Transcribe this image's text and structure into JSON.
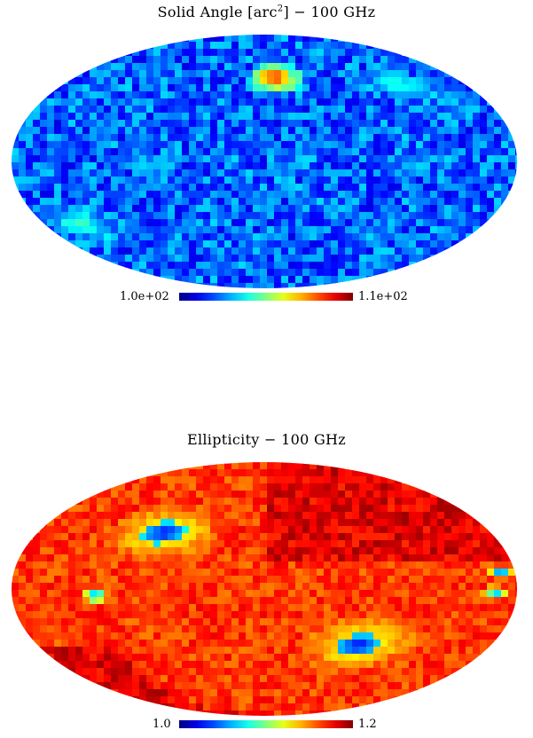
{
  "chart_data": [
    {
      "type": "heatmap",
      "projection": "mollweide",
      "title": "Solid Angle [arc²] − 100 GHz",
      "title_parts": {
        "pre": "Solid Angle [arc",
        "sup": "2",
        "post": "] − 100 GHz"
      },
      "colorbar": {
        "min": 100,
        "max": 110,
        "min_label": "1.0e+02",
        "max_label": "1.1e+02",
        "colormap": "jet"
      },
      "background_level": 0.22,
      "features": [
        {
          "kind": "noise",
          "amplitude": 0.12
        },
        {
          "kind": "spot",
          "lon": -150,
          "lat": -45,
          "value": 0.45
        },
        {
          "kind": "spot",
          "lon": 120,
          "lat": 55,
          "value": 0.45
        },
        {
          "kind": "spot",
          "lon": 10,
          "lat": 60,
          "value": 0.9
        }
      ]
    },
    {
      "type": "heatmap",
      "projection": "mollweide",
      "title": "Ellipticity − 100 GHz",
      "title_parts": {
        "pre": "Ellipticity − 100 GHz",
        "sup": "",
        "post": ""
      },
      "colorbar": {
        "min": 1.0,
        "max": 1.2,
        "min_label": "1.0",
        "max_label": "1.2",
        "colormap": "jet"
      },
      "background_level": 0.82,
      "features": [
        {
          "kind": "noise",
          "amplitude": 0.07
        },
        {
          "kind": "ring",
          "lon": -80,
          "lat": 40,
          "value": 0.3
        },
        {
          "kind": "ring",
          "lon": 75,
          "lat": -40,
          "value": 0.3
        },
        {
          "kind": "spot",
          "lon": -120,
          "lat": -5,
          "value": 0.05
        },
        {
          "kind": "spot",
          "lon": 170,
          "lat": 12,
          "value": 0.15
        },
        {
          "kind": "spot",
          "lon": 165,
          "lat": -2,
          "value": 0.2
        }
      ]
    }
  ]
}
